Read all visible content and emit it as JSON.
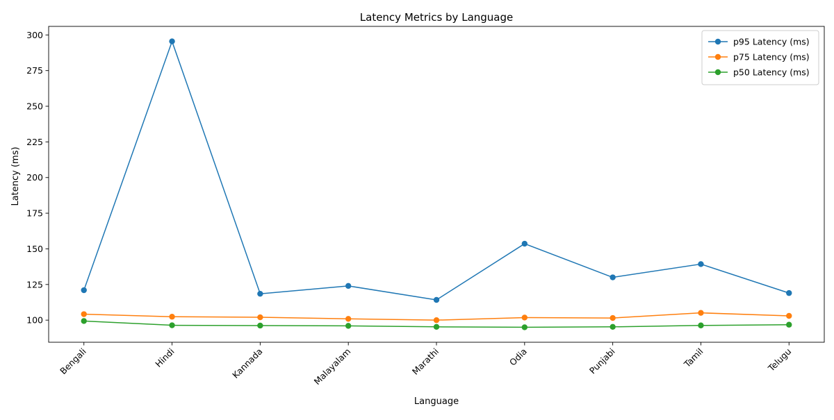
{
  "chart_data": {
    "type": "line",
    "title": "Latency Metrics by Language",
    "xlabel": "Language",
    "ylabel": "Latency (ms)",
    "categories": [
      "Bengali",
      "Hindi",
      "Kannada",
      "Malayalam",
      "Marathi",
      "Odia",
      "Punjabi",
      "Tamil",
      "Telugu"
    ],
    "ylim": [
      84.5,
      306
    ],
    "yticks": [
      100,
      125,
      150,
      175,
      200,
      225,
      250,
      275,
      300
    ],
    "grid": false,
    "legend_position": "top-right",
    "series": [
      {
        "name": "p95 Latency (ms)",
        "color": "#1f77b4",
        "values": [
          121.0,
          295.5,
          118.5,
          124.0,
          114.2,
          153.6,
          130.0,
          139.3,
          119.0
        ]
      },
      {
        "name": "p75 Latency (ms)",
        "color": "#ff7f0e",
        "values": [
          104.2,
          102.4,
          102.0,
          100.9,
          100.0,
          101.8,
          101.5,
          105.1,
          103.0
        ]
      },
      {
        "name": "p50 Latency (ms)",
        "color": "#2ca02c",
        "values": [
          99.4,
          96.4,
          96.2,
          96.0,
          95.3,
          95.0,
          95.3,
          96.3,
          96.8
        ]
      }
    ]
  }
}
